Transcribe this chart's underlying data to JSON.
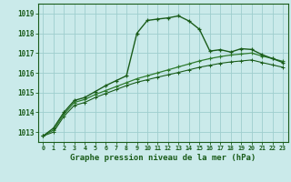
{
  "title": "Graphe pression niveau de la mer (hPa)",
  "background_color": "#caeaea",
  "grid_color": "#9ecece",
  "line_color_dark": "#1a5c1a",
  "line_color_mid": "#2d7a2d",
  "x_labels": [
    "0",
    "1",
    "2",
    "3",
    "4",
    "5",
    "6",
    "7",
    "8",
    "9",
    "10",
    "11",
    "12",
    "13",
    "14",
    "15",
    "16",
    "17",
    "18",
    "19",
    "20",
    "21",
    "22",
    "23"
  ],
  "ylim": [
    1012.5,
    1019.5
  ],
  "yticks": [
    1013,
    1014,
    1015,
    1016,
    1017,
    1018,
    1019
  ],
  "series1": [
    1012.8,
    1013.2,
    1014.0,
    1014.6,
    1014.75,
    1015.05,
    1015.35,
    1015.6,
    1015.85,
    1018.0,
    1018.65,
    1018.72,
    1018.78,
    1018.88,
    1018.62,
    1018.2,
    1017.1,
    1017.17,
    1017.05,
    1017.22,
    1017.18,
    1016.92,
    1016.72,
    1016.52
  ],
  "series2": [
    1012.8,
    1013.1,
    1013.9,
    1014.5,
    1014.65,
    1014.9,
    1015.1,
    1015.3,
    1015.5,
    1015.7,
    1015.85,
    1016.0,
    1016.15,
    1016.3,
    1016.45,
    1016.6,
    1016.72,
    1016.82,
    1016.9,
    1016.95,
    1017.0,
    1016.85,
    1016.72,
    1016.58
  ],
  "series3": [
    1012.8,
    1013.0,
    1013.8,
    1014.35,
    1014.5,
    1014.75,
    1014.95,
    1015.15,
    1015.35,
    1015.52,
    1015.65,
    1015.78,
    1015.9,
    1016.02,
    1016.15,
    1016.28,
    1016.38,
    1016.48,
    1016.55,
    1016.6,
    1016.65,
    1016.52,
    1016.4,
    1016.28
  ]
}
